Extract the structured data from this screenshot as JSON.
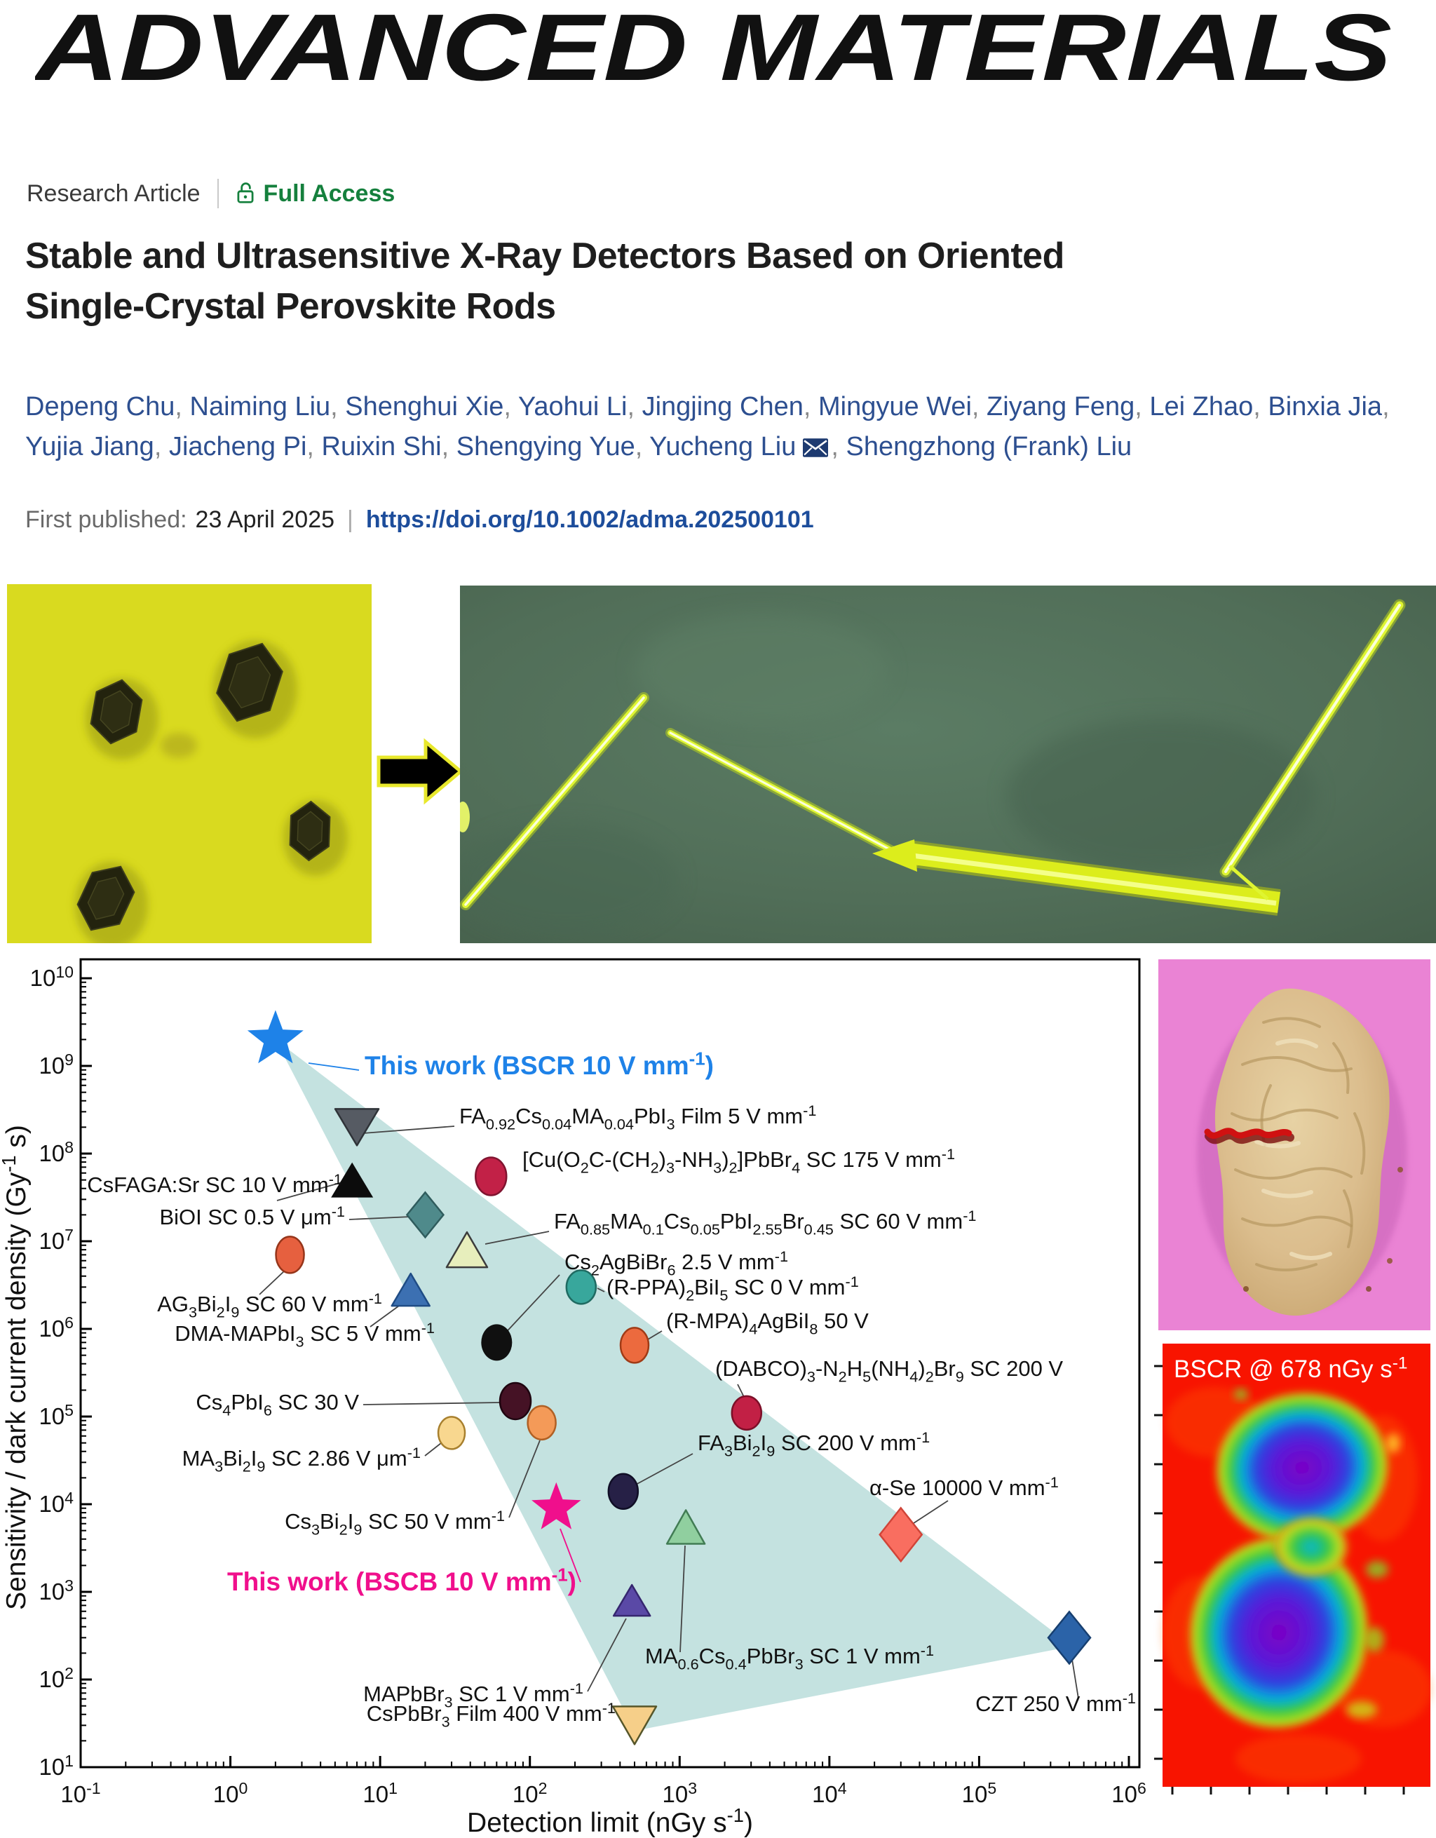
{
  "journal": {
    "logo": "ADVANCED MATERIALS"
  },
  "article": {
    "type_label": "Research Article",
    "access_label": "Full Access",
    "title_line1": "Stable and Ultrasensitive X-Ray Detectors Based on Oriented",
    "title_line2": "Single-Crystal Perovskite Rods",
    "authors": [
      "Depeng Chu",
      "Naiming Liu",
      "Shenghui Xie",
      "Yaohui Li",
      "Jingjing Chen",
      "Mingyue Wei",
      "Ziyang Feng",
      "Lei Zhao",
      "Binxia Jia",
      "Yujia Jiang",
      "Jiacheng Pi",
      "Ruixin Shi",
      "Shengying Yue",
      "Yucheng Liu",
      "Shengzhong (Frank) Liu"
    ],
    "corresponding_author_index": 13,
    "published_label": "First published:",
    "published_date": "23 April 2025",
    "doi": "https://doi.org/10.1002/adma.202500101"
  },
  "icons": {
    "access": "lock-icon",
    "corresponding_author": "mail-icon",
    "process_arrow": "arrow-icon"
  },
  "colors": {
    "accent_blue": "#1e82e8",
    "accent_pink": "#f00f8c",
    "access_green": "#15803d",
    "author_blue": "#2d4f90",
    "doi_blue": "#1d4d9b",
    "region_teal": "#bfdfdd"
  },
  "xray_image": {
    "caption": "BSCR @ 678 nGy s^-1^"
  },
  "chart_data": {
    "type": "scatter",
    "x_log": true,
    "y_log": true,
    "xlim": [
      0.1,
      1000000
    ],
    "ylim": [
      10,
      10000000000
    ],
    "xlabel": "Detection limit (nGy s^-1^)",
    "ylabel": "Sensitivity / dark current density (Gy^-1^ s)",
    "x_ticks": [
      "10^-1^",
      "10^0^",
      "10^1^",
      "10^2^",
      "10^3^",
      "10^4^",
      "10^5^",
      "10^6^"
    ],
    "y_ticks": [
      "10^1^",
      "10^2^",
      "10^3^",
      "10^4^",
      "10^5^",
      "10^6^",
      "10^7^",
      "10^8^",
      "10^9^",
      "10^10^"
    ],
    "grid": false,
    "region": {
      "color": "#bfdfdd",
      "vertices": [
        [
          2,
          2000000000
        ],
        [
          500,
          26
        ],
        [
          420000,
          240
        ]
      ]
    },
    "points": [
      {
        "label": "This work (BSCR 10 V mm^-1^)",
        "x": 2,
        "y": 2000000000,
        "marker": "star",
        "R": 42,
        "fill": "#1e82e8",
        "lx": 520,
        "ly": 172,
        "anchor": "start",
        "lcolor": "#1e82e8",
        "lbold": true,
        "lsize": 37,
        "leader": [
          440,
          156,
          512,
          166
        ],
        "leader_color": "#1e82e8"
      },
      {
        "label": "FA~0.92~Cs~0.04~MA~0.04~PbI~3~ Film 5 V mm^-1^",
        "x": 7,
        "y": 200000000,
        "marker": "tri-down",
        "w": 31,
        "h": 26,
        "fill": "#565b63",
        "stroke": "#2f3338",
        "lx": 655,
        "ly": 242,
        "anchor": "start",
        "leader": [
          518,
          256,
          648,
          246
        ]
      },
      {
        "label": "CsFAGA:Sr SC 10 V mm^-1^",
        "x": 6.5,
        "y": 50000000,
        "marker": "tri-up",
        "w": 30,
        "h": 25,
        "fill": "#0c0c0c",
        "lx": 488,
        "ly": 340,
        "anchor": "end",
        "leader": [
          395,
          352,
          488,
          326
        ]
      },
      {
        "label": "BiOI SC 0.5 V μm^-1^",
        "x": 20,
        "y": 20000000,
        "marker": "diamond",
        "w": 26,
        "h": 32,
        "fill": "#4f8a8b",
        "stroke": "#2f5c5d",
        "lx": 492,
        "ly": 386,
        "anchor": "end",
        "leader": [
          498,
          379,
          586,
          375
        ]
      },
      {
        "label": "[Cu(O~2~C-(CH~2~)~3~-NH~3~)~2~]PbBr~4~ SC 175 V mm^-1^",
        "x": 55,
        "y": 55000000,
        "marker": "ellipse",
        "rx": 22,
        "ry": 27,
        "fill": "#c22147",
        "stroke": "#801430",
        "lx": 745,
        "ly": 304,
        "anchor": "start",
        "leader": null
      },
      {
        "label": "FA~0.85~MA~0.1~Cs~0.05~PbI~2.55~Br~0.45~ SC 60 V mm^-1^",
        "x": 38,
        "y": 8000000,
        "marker": "tri-up",
        "w": 29,
        "h": 25,
        "fill": "#e7eebc",
        "stroke": "#3c3c3c",
        "lx": 790,
        "ly": 392,
        "anchor": "start",
        "leader": [
          692,
          414,
          783,
          396
        ]
      },
      {
        "label": "AG~3~Bi~2~I~9~ SC 60 V mm^-1^",
        "x": 2.5,
        "y": 7000000,
        "marker": "ellipse",
        "rx": 20,
        "ry": 26,
        "fill": "#e6603f",
        "stroke": "#96351a",
        "lx": 545,
        "ly": 510,
        "anchor": "end",
        "leader": [
          370,
          486,
          406,
          452
        ]
      },
      {
        "label": "DMA-MAPbI~3~ SC 5 V mm^-1^",
        "x": 16,
        "y": 2800000,
        "marker": "tri-up",
        "w": 27,
        "h": 23,
        "fill": "#3c70b2",
        "stroke": "#1f4c85",
        "lx": 620,
        "ly": 552,
        "anchor": "end",
        "leader": [
          528,
          532,
          576,
          497
        ]
      },
      {
        "label": "(R-PPA)~2~BiI~5~ SC 0 V mm^-1^",
        "x": 220,
        "y": 3000000,
        "marker": "ellipse",
        "rx": 21,
        "ry": 24,
        "fill": "#38a79c",
        "stroke": "#1f6b62",
        "lx": 865,
        "ly": 486,
        "anchor": "start",
        "leader": [
          852,
          477,
          862,
          482
        ]
      },
      {
        "label": "Cs~2~AgBiBr~6~ 2.5 V mm^-1^",
        "x": 60,
        "y": 700000,
        "marker": "ellipse",
        "rx": 22,
        "ry": 26,
        "fill": "#101010",
        "lx": 805,
        "ly": 450,
        "anchor": "start",
        "leader": [
          798,
          458,
          716,
          546
        ]
      },
      {
        "label": "(R-MPA)~4~AgBiI~8~ 50 V",
        "x": 500,
        "y": 650000,
        "marker": "ellipse",
        "rx": 20,
        "ry": 25,
        "fill": "#ec6a3e",
        "stroke": "#a03b16",
        "lx": 950,
        "ly": 534,
        "anchor": "start",
        "leader": [
          924,
          550,
          944,
          538
        ]
      },
      {
        "label": "Cs~4~PbI~6~ SC 30 V",
        "x": 80,
        "y": 150000,
        "marker": "ellipse",
        "rx": 22,
        "ry": 26,
        "fill": "#451225",
        "stroke": "#1f0510",
        "lx": 512,
        "ly": 650,
        "anchor": "end",
        "leader": [
          518,
          643,
          712,
          640
        ]
      },
      {
        "label": "MA~3~Bi~2~I~9~ SC 2.86 V μm^-1^",
        "x": 30,
        "y": 65000,
        "marker": "ellipse",
        "rx": 19,
        "ry": 23,
        "fill": "#f8d78f",
        "stroke": "#a8802e",
        "lx": 600,
        "ly": 730,
        "anchor": "end",
        "leader": [
          606,
          716,
          634,
          694
        ]
      },
      {
        "label": "Cs~3~Bi~2~I~9~ SC 50 V mm^-1^",
        "x": 120,
        "y": 85000,
        "marker": "ellipse",
        "rx": 20,
        "ry": 24,
        "fill": "#f49a58",
        "stroke": "#b06024",
        "lx": 720,
        "ly": 820,
        "anchor": "end",
        "leader": [
          726,
          804,
          770,
          694
        ]
      },
      {
        "label": "(DABCO)~3~-N~2~H~5~(NH~4~)~2~Br~9~ SC 200 V",
        "x": 2800,
        "y": 110000,
        "marker": "ellipse",
        "rx": 21,
        "ry": 24,
        "fill": "#c22045",
        "stroke": "#7c0f28",
        "lx": 1020,
        "ly": 602,
        "anchor": "start",
        "leader": [
          1052,
          614,
          1062,
          634
        ]
      },
      {
        "label": "This work (BSCB 10 V mm^-1^)",
        "x": 150,
        "y": 9000,
        "marker": "star",
        "R": 37,
        "fill": "#f00f8c",
        "lx": 822,
        "ly": 908,
        "anchor": "end",
        "lcolor": "#f00f8c",
        "lbold": true,
        "lsize": 37,
        "leader": [
          828,
          896,
          799,
          820
        ],
        "leader_color": "#f00f8c"
      },
      {
        "label": "FA~3~Bi~2~I~9~ SC 200 V mm^-1^",
        "x": 420,
        "y": 14000,
        "marker": "ellipse",
        "rx": 21,
        "ry": 25,
        "fill": "#262046",
        "stroke": "#100e26",
        "lx": 995,
        "ly": 708,
        "anchor": "start",
        "leader": [
          905,
          758,
          988,
          713
        ]
      },
      {
        "label": "MA~0.6~Cs~0.4~PbBr~3~ SC 1 V mm^-1^",
        "x": 1100,
        "y": 5500,
        "marker": "tri-up",
        "w": 27,
        "h": 24,
        "fill": "#90cf9f",
        "stroke": "#417c54",
        "lx": 920,
        "ly": 1012,
        "anchor": "start",
        "leader": [
          970,
          996,
          977,
          844
        ]
      },
      {
        "label": "α-Se 10000 V mm^-1^",
        "x": 30000,
        "y": 4500,
        "marker": "diamond",
        "w": 30,
        "h": 38,
        "fill": "#f96e60",
        "stroke": "#d04438",
        "lx": 1240,
        "ly": 772,
        "anchor": "start",
        "leader": [
          1300,
          814,
          1352,
          780
        ]
      },
      {
        "label": "MAPbBr~3~ SC 1 V mm^-1^",
        "x": 480,
        "y": 800,
        "marker": "tri-up",
        "w": 26,
        "h": 22,
        "fill": "#5a49a6",
        "stroke": "#35266f",
        "lx": 832,
        "ly": 1066,
        "anchor": "end",
        "leader": [
          838,
          1052,
          893,
          948
        ]
      },
      {
        "label": "CZT 250 V mm^-1^",
        "x": 400000,
        "y": 300,
        "marker": "diamond",
        "w": 30,
        "h": 37,
        "fill": "#2b63a8",
        "stroke": "#173f70",
        "lx": 1620,
        "ly": 1080,
        "anchor": "end",
        "leader": [
          1538,
          1062,
          1528,
          1000
        ]
      },
      {
        "label": "CsPbBr~3~ Film 400 V mm^-1^",
        "x": 500,
        "y": 30,
        "marker": "tri-down",
        "w": 31,
        "h": 27,
        "fill": "#f6cf89",
        "stroke": "#56562a",
        "lx": 878,
        "ly": 1094,
        "anchor": "end",
        "leader": null
      }
    ]
  }
}
